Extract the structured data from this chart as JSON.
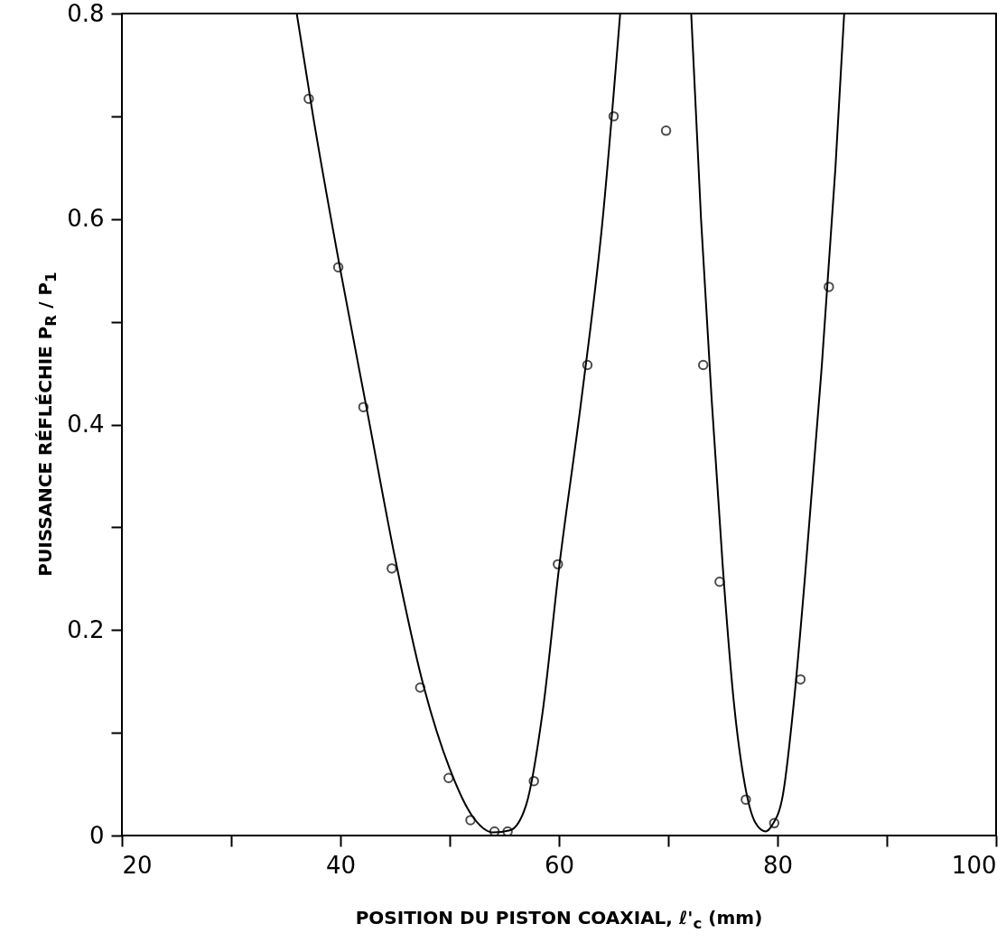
{
  "chart_data": {
    "type": "scatter",
    "xlabel": "POSITION DU PISTON COAXIAL, ℓ'$_{c}$ (mm)",
    "ylabel": "PUISSANCE RÉFLÉCHIE P$_{R}$ / P$_{1}$",
    "xlim": [
      20,
      100
    ],
    "ylim": [
      0,
      0.8
    ],
    "xticks": [
      20,
      {
        "value": 30,
        "label": null
      },
      40,
      {
        "value": 50,
        "label": null
      },
      60,
      {
        "value": 70,
        "label": null
      },
      80,
      {
        "value": 90,
        "label": null
      },
      100
    ],
    "yticks": [
      0,
      {
        "value": 0.1,
        "label": null
      },
      0.2,
      {
        "value": 0.3,
        "label": null
      },
      0.4,
      {
        "value": 0.5,
        "label": null
      },
      0.6,
      {
        "value": 0.7,
        "label": null
      },
      0.8
    ],
    "grid": false,
    "series": [
      {
        "marker": "circle",
        "color": "#000000",
        "x": [
          37.1,
          39.8,
          42.1,
          44.7,
          47.3,
          49.9,
          51.9,
          54.1,
          55.3,
          57.7,
          59.9,
          62.6,
          65.0,
          69.8,
          73.2,
          74.7,
          77.1,
          79.7,
          82.1,
          84.7
        ],
        "values": [
          0.717,
          0.553,
          0.417,
          0.26,
          0.144,
          0.056,
          0.015,
          0.004,
          0.004,
          0.053,
          0.264,
          0.458,
          0.7,
          0.686,
          0.458,
          0.247,
          0.035,
          0.012,
          0.152,
          0.534
        ]
      },
      {
        "type": "line",
        "line_style": "solid",
        "color": "#000000",
        "x": [
          36.0,
          37.5,
          40,
          42.5,
          45,
          47.5,
          50,
          52,
          54,
          55.5,
          57,
          58.5,
          60,
          62,
          64,
          65.6
        ],
        "values": [
          0.8,
          0.7,
          0.55,
          0.41,
          0.27,
          0.15,
          0.065,
          0.02,
          0.003,
          0.005,
          0.03,
          0.12,
          0.26,
          0.42,
          0.6,
          0.8
        ]
      },
      {
        "type": "line",
        "line_style": "solid",
        "color": "#000000",
        "x": [
          72.1,
          73,
          74,
          75,
          76,
          77,
          78,
          78.9,
          79.5,
          80.5,
          81.5,
          82.5,
          84,
          85.3,
          86.1
        ],
        "values": [
          0.8,
          0.6,
          0.42,
          0.26,
          0.13,
          0.05,
          0.012,
          0.004,
          0.01,
          0.04,
          0.13,
          0.25,
          0.45,
          0.65,
          0.8
        ]
      }
    ]
  }
}
